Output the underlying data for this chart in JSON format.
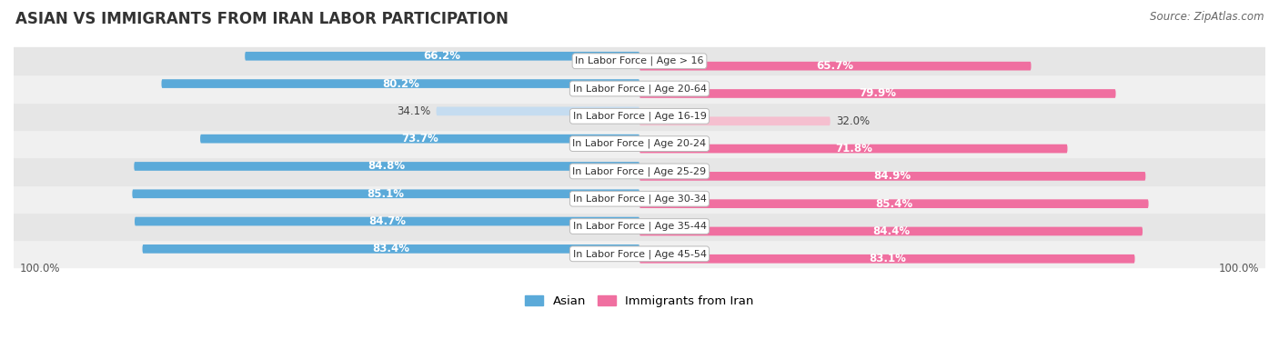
{
  "title": "ASIAN VS IMMIGRANTS FROM IRAN LABOR PARTICIPATION",
  "source": "Source: ZipAtlas.com",
  "categories": [
    "In Labor Force | Age > 16",
    "In Labor Force | Age 20-64",
    "In Labor Force | Age 16-19",
    "In Labor Force | Age 20-24",
    "In Labor Force | Age 25-29",
    "In Labor Force | Age 30-34",
    "In Labor Force | Age 35-44",
    "In Labor Force | Age 45-54"
  ],
  "asian_values": [
    66.2,
    80.2,
    34.1,
    73.7,
    84.8,
    85.1,
    84.7,
    83.4
  ],
  "iran_values": [
    65.7,
    79.9,
    32.0,
    71.8,
    84.9,
    85.4,
    84.4,
    83.1
  ],
  "asian_color": "#5BAAD9",
  "asian_light_color": "#C5DCF0",
  "iran_color": "#F06FA0",
  "iran_light_color": "#F5BFCF",
  "row_bg_even": "#F0F0F0",
  "row_bg_odd": "#E6E6E6",
  "max_value": 100.0,
  "light_threshold": 50.0,
  "title_fontsize": 12,
  "bar_label_fontsize": 8.5,
  "category_fontsize": 8,
  "legend_fontsize": 9.5
}
